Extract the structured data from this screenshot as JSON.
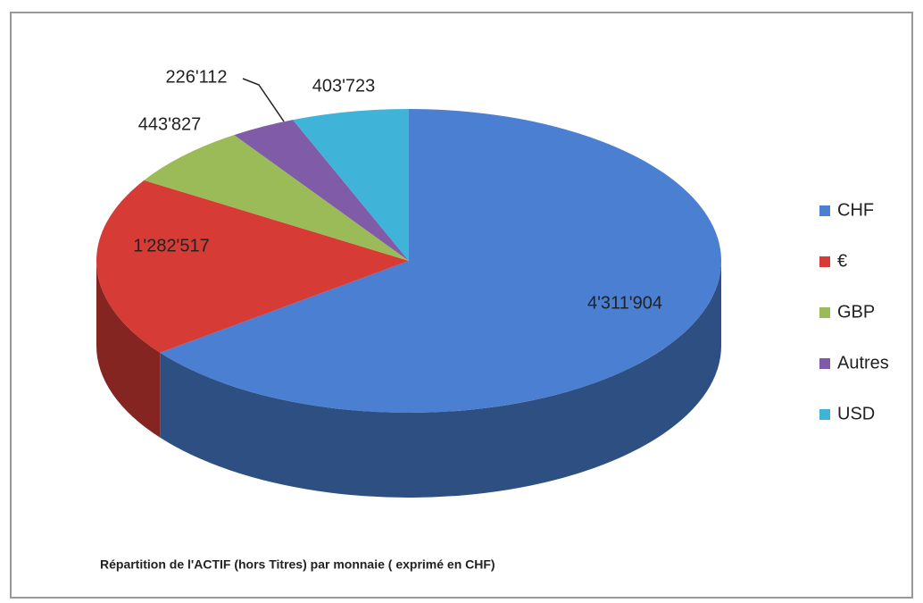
{
  "chart_data": {
    "type": "pie",
    "title": "Répartition de l'ACTIF (hors Titres)  par monnaie  ( exprimé en CHF)",
    "categories": [
      "CHF",
      "€",
      "GBP",
      "Autres",
      "USD"
    ],
    "values": [
      4311904,
      1282517,
      443827,
      226112,
      403723
    ],
    "value_labels": [
      "4'311'904",
      "1'282'517",
      "443'827",
      "226'112",
      "403'723"
    ],
    "colors": [
      "#4a7fd2",
      "#d63b36",
      "#9bbb59",
      "#7f5ba8",
      "#3fb4d8"
    ],
    "legend": "right"
  }
}
